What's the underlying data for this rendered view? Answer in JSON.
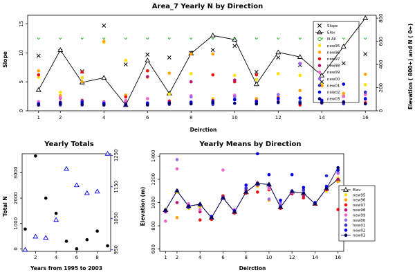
{
  "chart_data": [
    {
      "type": "line",
      "title": "Area_7 Yearly N by Direction",
      "xlabel": "Deirction",
      "ylabel": "Slope",
      "ylabel_right": "Elevation ( 800+) and N ( 0+)",
      "xlim": [
        0.5,
        16.5
      ],
      "ylim": [
        0,
        16.5
      ],
      "ylim_right": [
        0,
        825
      ],
      "xticks": [
        1,
        2,
        4,
        6,
        8,
        10,
        12,
        14,
        16
      ],
      "yticks": [
        0,
        5,
        10,
        15
      ],
      "yticks_right": [
        0,
        200,
        400,
        600,
        800
      ],
      "legend": "top-right",
      "x": [
        1,
        2,
        3,
        4,
        5,
        6,
        7,
        8,
        9,
        10,
        11,
        12,
        13,
        14,
        15,
        16
      ],
      "series": [
        {
          "name": "Slope",
          "marker": "x",
          "color": "#000000",
          "values": [
            9.5,
            10.3,
            6.8,
            14.7,
            8.0,
            9.7,
            9.2,
            10.0,
            10.5,
            11.2,
            6.7,
            9.2,
            7.9,
            5.0,
            8.2,
            9.8
          ]
        },
        {
          "name": "Elev",
          "marker": "triangle",
          "color": "#000000",
          "values": [
            3.6,
            10.5,
            4.9,
            5.7,
            1.0,
            8.7,
            3.0,
            9.9,
            13.0,
            12.3,
            4.6,
            10.1,
            9.3,
            6.1,
            11.1,
            16.0
          ]
        },
        {
          "name": "N All",
          "marker": "circle-open",
          "color": "#22bb22",
          "values": [
            12.5,
            12.5,
            12.5,
            12.5,
            12.5,
            12.5,
            12.5,
            12.5,
            12.5,
            12.5,
            12.5,
            12.5,
            12.5,
            12.5,
            12.5,
            12.5
          ]
        },
        {
          "name": "new95",
          "marker": "dot",
          "color": "#ffe000",
          "values": [
            5.8,
            3.2,
            5.7,
            11.8,
            8.7,
            6.9,
            2.9,
            6.4,
            2.1,
            6.1,
            5.4,
            6.4,
            6.1,
            4.5,
            2.7,
            4.5
          ]
        },
        {
          "name": "new96",
          "marker": "dot",
          "color": "#ffa500",
          "values": [
            6.9,
            2.6,
            5.0,
            12.0,
            2.7,
            5.8,
            6.5,
            9.8,
            9.8,
            2.5,
            2.1,
            2.4,
            3.5,
            4.3,
            3.0,
            6.3
          ]
        },
        {
          "name": "new97",
          "marker": "dot",
          "color": "#ee1111",
          "values": [
            6.2,
            1.5,
            6.7,
            1.5,
            2.4,
            6.9,
            1.7,
            1.4,
            6.2,
            5.0,
            6.2,
            1.6,
            1.0,
            1.5,
            1.4,
            1.4
          ]
        },
        {
          "name": "new98",
          "marker": "dot",
          "color": "#bb1177",
          "values": [
            1.1,
            2.2,
            1.8,
            1.5,
            1.6,
            5.9,
            1.3,
            5.0,
            1.8,
            5.3,
            1.7,
            2.2,
            1.5,
            1.8,
            2.5,
            2.0
          ]
        },
        {
          "name": "new99",
          "marker": "dot",
          "color": "#ee66cc",
          "values": [
            1.6,
            2.3,
            1.3,
            1.4,
            1.8,
            2.1,
            1.4,
            2.6,
            1.4,
            2.7,
            1.5,
            1.7,
            8.2,
            1.4,
            2.5,
            2.8
          ]
        },
        {
          "name": "new00",
          "marker": "dot",
          "color": "#9966ee",
          "values": [
            1.3,
            1.1,
            1.6,
            1.2,
            1.2,
            1.4,
            1.2,
            2.4,
            1.3,
            2.4,
            1.4,
            2.8,
            8.1,
            1.3,
            1.6,
            3.2
          ]
        },
        {
          "name": "new01",
          "marker": "dot",
          "color": "#3333cc",
          "values": [
            1.0,
            1.0,
            1.0,
            1.0,
            1.2,
            1.1,
            1.1,
            1.4,
            1.1,
            2.0,
            1.2,
            1.4,
            1.6,
            1.4,
            1.2,
            3.2
          ]
        },
        {
          "name": "new02",
          "marker": "dot",
          "color": "#0000ee",
          "values": [
            1.2,
            1.4,
            1.5,
            1.3,
            1.0,
            1.3,
            1.4,
            1.5,
            1.6,
            1.9,
            1.6,
            2.1,
            2.2,
            1.8,
            4.6,
            2.1
          ]
        },
        {
          "name": "new03",
          "marker": "dot",
          "color": "#000066",
          "values": [
            1.0,
            1.2,
            1.1,
            1.0,
            1.1,
            1.0,
            1.3,
            1.2,
            1.4,
            1.3,
            1.2,
            1.5,
            1.3,
            1.4,
            1.5,
            1.2
          ]
        }
      ]
    },
    {
      "type": "scatter",
      "title": "Yearly Totals",
      "xlabel": "Years from 1995 to 2003",
      "ylabel": "Total N",
      "xlim": [
        0.7,
        9.3
      ],
      "ylim": [
        -100,
        3750
      ],
      "ylim_right": [
        945,
        1255
      ],
      "xticks": [
        2,
        4,
        6,
        8
      ],
      "yticks": [
        0,
        1000,
        2000,
        3000
      ],
      "yticks_right": [
        950,
        1050,
        1150,
        1250
      ],
      "x": [
        1,
        2,
        3,
        4,
        5,
        6,
        7,
        8,
        9
      ],
      "series": [
        {
          "marker": "dot",
          "color": "#000000",
          "axis": "left",
          "values": [
            780,
            3660,
            2000,
            1400,
            300,
            0,
            360,
            700,
            120
          ]
        },
        {
          "marker": "triangle-open",
          "color": "#0000ee",
          "axis": "right",
          "values": [
            950,
            992,
            988,
            1045,
            1207,
            1155,
            1130,
            1135,
            1255
          ]
        }
      ]
    },
    {
      "type": "line",
      "title": "Yearly Means by Direction",
      "xlabel": "Deirction",
      "ylabel": "Elevation (m)",
      "xlim": [
        0.5,
        16.5
      ],
      "ylim": [
        580,
        1420
      ],
      "xticks": [
        1,
        2,
        4,
        6,
        8,
        10,
        12,
        14,
        16
      ],
      "yticks": [
        600,
        800,
        1000,
        1200,
        1400
      ],
      "legend": "right",
      "x": [
        1,
        2,
        3,
        4,
        5,
        6,
        7,
        8,
        9,
        10,
        11,
        12,
        13,
        14,
        15,
        16
      ],
      "series": [
        {
          "name": "Elev",
          "marker": "triangle-open",
          "color": "#000000",
          "line": true,
          "values": [
            935,
            1100,
            970,
            985,
            870,
            1040,
            920,
            1090,
            1165,
            1155,
            960,
            1095,
            1080,
            990,
            1120,
            1200
          ]
        },
        {
          "name": "new95",
          "marker": "dot",
          "color": "#ffe000",
          "values": [
            930,
            1090,
            950,
            965,
            880,
            1045,
            930,
            1115,
            1140,
            1110,
            965,
            1075,
            1060,
            990,
            1100,
            1210
          ]
        },
        {
          "name": "new96",
          "marker": "dot",
          "color": "#ffa500",
          "values": [
            940,
            870,
            960,
            970,
            860,
            1060,
            930,
            1105,
            1170,
            1020,
            970,
            1085,
            1070,
            995,
            1110,
            1180
          ]
        },
        {
          "name": "new97",
          "marker": "dot",
          "color": "#ee1111",
          "values": [
            930,
            1100,
            960,
            850,
            855,
            1055,
            910,
            1080,
            1090,
            1110,
            950,
            1075,
            1040,
            985,
            1110,
            940
          ]
        },
        {
          "name": "new98",
          "marker": "dot",
          "color": "#bb1177",
          "values": [
            920,
            1000,
            980,
            920,
            870,
            1055,
            920,
            1100,
            1150,
            1125,
            960,
            1080,
            1060,
            990,
            1115,
            1200
          ]
        },
        {
          "name": "new99",
          "marker": "dot",
          "color": "#ee66cc",
          "values": [
            840,
            1290,
            990,
            940,
            880,
            1280,
            940,
            1125,
            1170,
            1120,
            975,
            1090,
            1090,
            1000,
            1120,
            1250
          ]
        },
        {
          "name": "new00",
          "marker": "dot",
          "color": "#9966ee",
          "values": [
            930,
            1370,
            970,
            980,
            880,
            1035,
            930,
            1130,
            1160,
            1030,
            1000,
            1095,
            1100,
            995,
            1125,
            1260
          ]
        },
        {
          "name": "new01",
          "marker": "dot",
          "color": "#3333cc",
          "values": [
            935,
            1100,
            970,
            985,
            870,
            1040,
            920,
            1120,
            1160,
            1150,
            970,
            1100,
            1110,
            990,
            1230,
            1280
          ]
        },
        {
          "name": "new02",
          "marker": "dot",
          "color": "#0000ee",
          "values": [
            930,
            1100,
            960,
            980,
            880,
            1040,
            930,
            1150,
            1420,
            1240,
            1020,
            1240,
            1130,
            1000,
            1140,
            1280
          ]
        },
        {
          "name": "new03",
          "marker": "dot",
          "color": "#000066",
          "line": true,
          "values": [
            935,
            1100,
            970,
            985,
            870,
            1040,
            920,
            1090,
            1165,
            1155,
            960,
            1095,
            1080,
            990,
            1120,
            1300
          ]
        }
      ]
    }
  ]
}
